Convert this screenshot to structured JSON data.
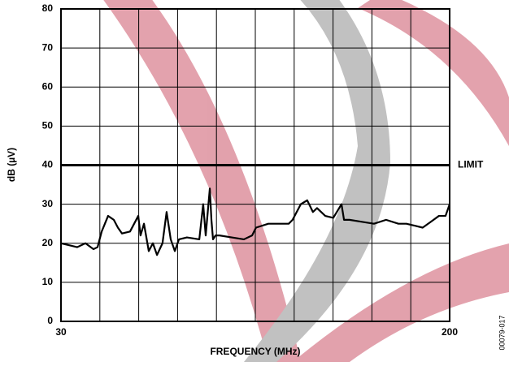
{
  "chart_data": {
    "type": "line",
    "x_label": "FREQUENCY (MHz)",
    "y_label": "dB (µV)",
    "code": "00079-017",
    "xlim": [
      30,
      200
    ],
    "xticks": [
      30,
      200
    ],
    "ylim": [
      0,
      80
    ],
    "yticks": [
      0,
      10,
      20,
      30,
      40,
      50,
      60,
      70,
      80
    ],
    "grid": true,
    "series": [
      {
        "color": "#000000",
        "x": [
          30,
          33.6,
          37.1,
          40.7,
          44.2,
          46,
          47.8,
          50.6,
          53.1,
          54.9,
          56.7,
          60.2,
          63.8,
          64.8,
          66.3,
          68.4,
          70.2,
          72,
          74.4,
          76.2,
          78,
          79.8,
          81.6,
          85.1,
          90.5,
          92.2,
          93.3,
          95.1,
          95.8,
          96.5,
          97.6,
          99.3,
          104.7,
          110,
          113.6,
          115.3,
          120.7,
          129.6,
          131.3,
          134.9,
          137.7,
          140.2,
          142,
          145.6,
          149.1,
          152.7,
          153.8,
          156.2,
          161.6,
          166.9,
          172.2,
          177.6,
          181.1,
          184.7,
          188.2,
          191.8,
          195.3,
          198.2,
          200
        ],
        "values": [
          20,
          19.5,
          19,
          20,
          18.5,
          19,
          23,
          27,
          26,
          24,
          22.5,
          23,
          27,
          22,
          25,
          18,
          20,
          17,
          20,
          28,
          21,
          18,
          21,
          21.5,
          21,
          30,
          22,
          34,
          26,
          21,
          22,
          22,
          21.5,
          21,
          22,
          24,
          25,
          25,
          26,
          30,
          31,
          28,
          29,
          27,
          26.5,
          30,
          26,
          26,
          25.5,
          25,
          26,
          25,
          25,
          24.5,
          24,
          25.5,
          27,
          27,
          30
        ]
      },
      {
        "name": "LIMIT",
        "color": "#000000",
        "x": [
          30,
          200
        ],
        "values": [
          40,
          40
        ]
      }
    ]
  }
}
